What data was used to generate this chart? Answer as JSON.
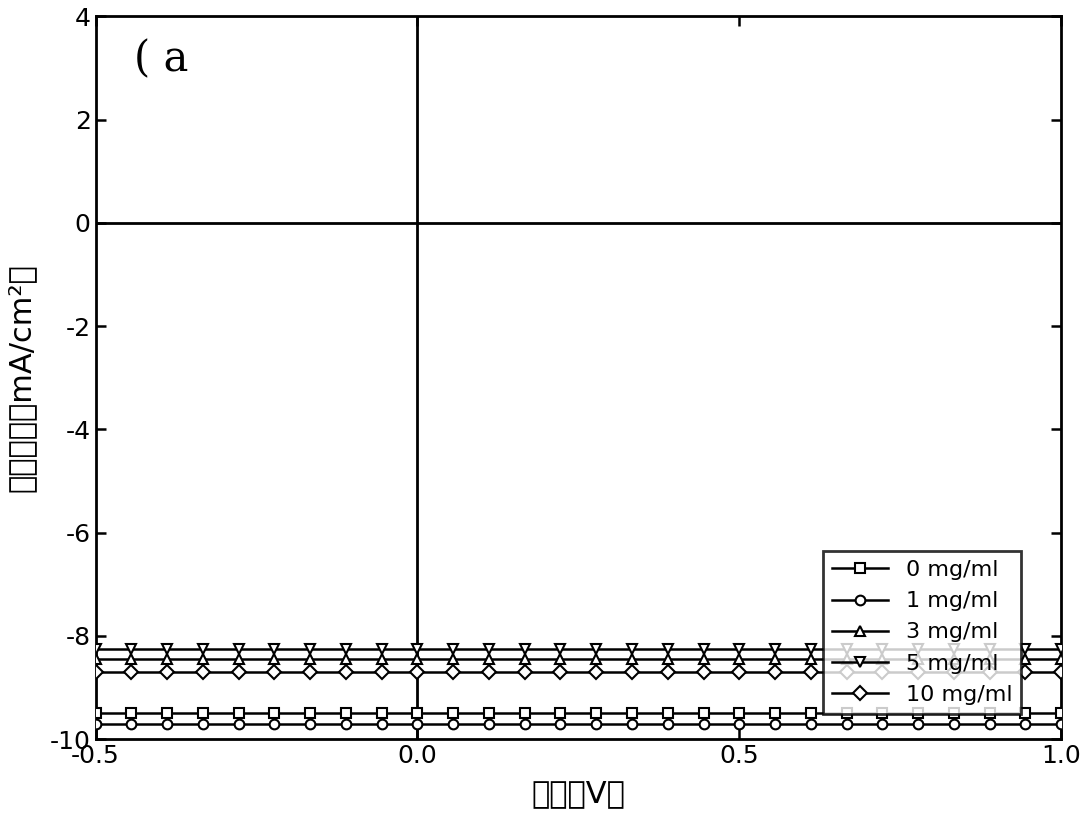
{
  "title": "",
  "xlabel": "电压（V）",
  "ylabel": "电流密度（mA/cm²）",
  "label_a": "( a",
  "xlim": [
    -0.5,
    1.0
  ],
  "ylim": [
    -10,
    4
  ],
  "xticks": [
    -0.5,
    0.0,
    0.5,
    1.0
  ],
  "yticks": [
    -10,
    -8,
    -6,
    -4,
    -2,
    0,
    2,
    4
  ],
  "curve_params": [
    {
      "label": "0 mg/ml",
      "marker": "s",
      "Jsc": -9.5,
      "Voc": 0.565,
      "Rs": 18.0,
      "n": 2.0
    },
    {
      "label": "1 mg/ml",
      "marker": "o",
      "Jsc": -9.7,
      "Voc": 0.545,
      "Rs": 20.0,
      "n": 2.0
    },
    {
      "label": "3 mg/ml",
      "marker": "^",
      "Jsc": -8.45,
      "Voc": 0.535,
      "Rs": 22.0,
      "n": 2.0
    },
    {
      "label": "5 mg/ml",
      "marker": "v",
      "Jsc": -8.25,
      "Voc": 0.535,
      "Rs": 22.0,
      "n": 2.0
    },
    {
      "label": "10 mg/ml",
      "marker": "D",
      "Jsc": -8.7,
      "Voc": 0.515,
      "Rs": 22.0,
      "n": 2.0
    }
  ],
  "color": "black",
  "linewidth": 1.8,
  "markersize": 7,
  "markerfacecolor": "white",
  "markeredgecolor": "black",
  "markeredgewidth": 1.5,
  "n_markers": 28,
  "figsize": [
    10.88,
    8.15
  ],
  "dpi": 100
}
